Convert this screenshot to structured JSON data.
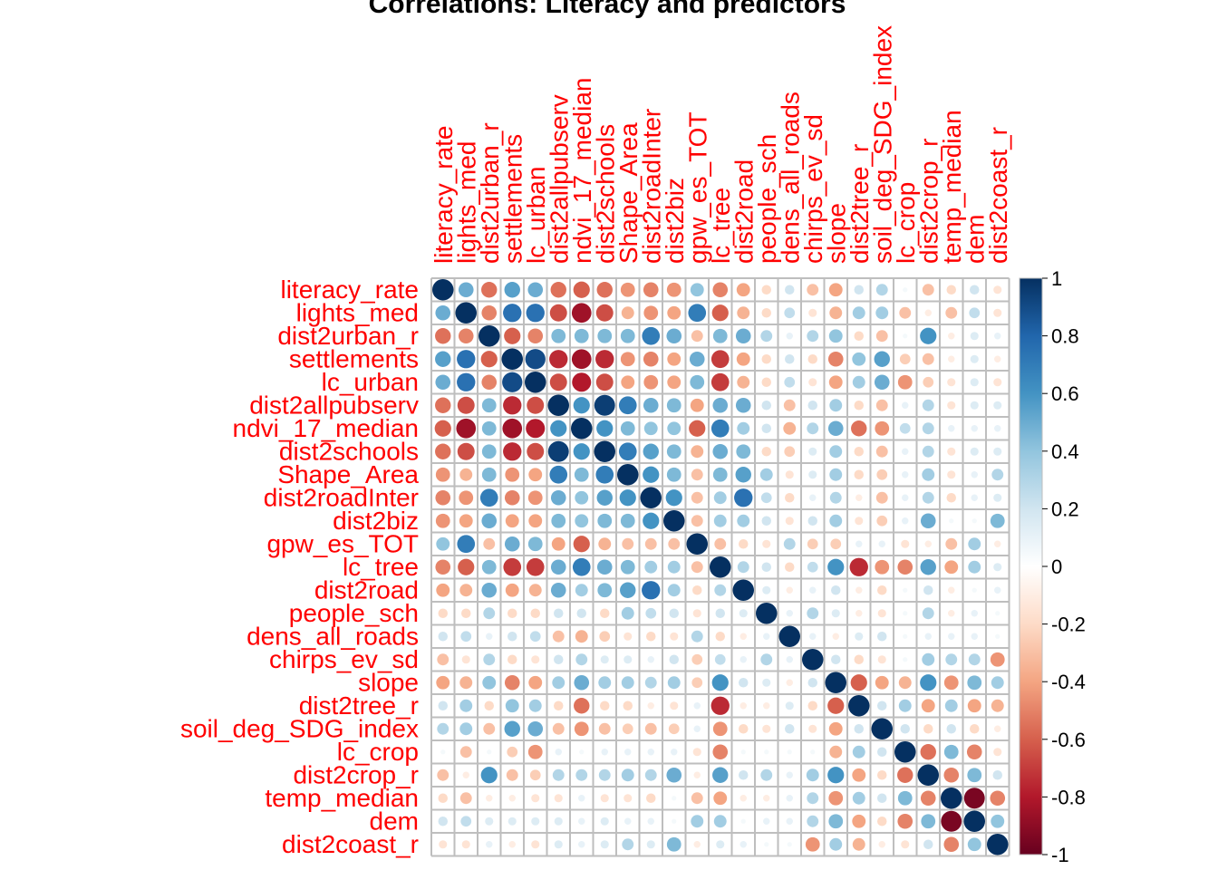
{
  "chart_data": {
    "type": "heatmap",
    "title": "Correlations: Literacy and predictors",
    "variables": [
      "literacy_rate",
      "lights_med",
      "dist2urban_r",
      "settlements",
      "lc_urban",
      "dist2allpubserv",
      "ndvi_17_median",
      "dist2schools",
      "Shape_Area",
      "dist2roadInter",
      "dist2biz",
      "gpw_es_TOT",
      "lc_tree",
      "dist2road",
      "people_sch",
      "dens_all_roads",
      "chirps_ev_sd",
      "slope",
      "dist2tree_r",
      "soil_deg_SDG_index",
      "lc_crop",
      "dist2crop_r",
      "temp_median",
      "dem",
      "dist2coast_r"
    ],
    "values": [
      [
        1,
        0.5,
        -0.55,
        0.55,
        0.5,
        -0.55,
        -0.6,
        -0.55,
        -0.45,
        -0.5,
        -0.45,
        0.4,
        -0.5,
        -0.4,
        -0.2,
        0.2,
        -0.3,
        -0.4,
        0.2,
        0.3,
        0.05,
        -0.3,
        -0.2,
        0.2,
        -0.15
      ],
      [
        0.5,
        1,
        -0.5,
        0.75,
        0.75,
        -0.65,
        -0.85,
        -0.65,
        -0.35,
        -0.45,
        -0.4,
        0.7,
        -0.6,
        -0.35,
        -0.2,
        0.25,
        -0.15,
        -0.35,
        0.35,
        0.35,
        -0.3,
        -0.1,
        -0.3,
        0.25,
        -0.15
      ],
      [
        -0.55,
        -0.5,
        1,
        -0.6,
        -0.5,
        0.45,
        0.45,
        0.45,
        0.45,
        0.7,
        0.5,
        -0.3,
        0.45,
        0.5,
        0.3,
        0.1,
        0.3,
        0.4,
        -0.2,
        -0.3,
        0.05,
        0.6,
        -0.1,
        0.15,
        0.1
      ],
      [
        0.55,
        0.75,
        -0.6,
        1,
        0.9,
        -0.75,
        -0.85,
        -0.75,
        -0.45,
        -0.5,
        -0.4,
        0.5,
        -0.7,
        -0.4,
        -0.2,
        0.2,
        -0.2,
        -0.5,
        0.4,
        0.55,
        -0.25,
        -0.3,
        -0.1,
        0.15,
        -0.1
      ],
      [
        0.5,
        0.75,
        -0.5,
        0.9,
        1,
        -0.65,
        -0.8,
        -0.65,
        -0.4,
        -0.45,
        -0.4,
        0.45,
        -0.7,
        -0.35,
        -0.2,
        0.25,
        -0.15,
        -0.4,
        0.35,
        0.5,
        -0.45,
        -0.25,
        -0.15,
        0.15,
        -0.15
      ],
      [
        -0.55,
        -0.65,
        0.45,
        -0.75,
        -0.65,
        1,
        0.6,
        0.95,
        0.7,
        0.5,
        0.45,
        -0.4,
        0.5,
        0.5,
        0.2,
        -0.3,
        0.2,
        0.35,
        -0.2,
        -0.3,
        0.1,
        0.3,
        -0.15,
        0.15,
        0.15
      ],
      [
        -0.6,
        -0.85,
        0.45,
        -0.85,
        -0.8,
        0.6,
        1,
        0.6,
        0.45,
        0.4,
        0.4,
        -0.6,
        0.7,
        0.35,
        0.2,
        -0.35,
        0.3,
        0.5,
        -0.55,
        -0.45,
        0.25,
        0.3,
        0.1,
        0.1,
        0.1
      ],
      [
        -0.55,
        -0.65,
        0.45,
        -0.75,
        -0.65,
        0.95,
        0.6,
        1,
        0.7,
        0.55,
        0.45,
        -0.35,
        0.5,
        0.45,
        -0.2,
        -0.25,
        0.15,
        0.35,
        -0.2,
        -0.3,
        0.1,
        0.3,
        -0.15,
        0.15,
        0.15
      ],
      [
        -0.45,
        -0.35,
        0.45,
        -0.45,
        -0.4,
        0.7,
        0.45,
        0.7,
        1,
        0.6,
        0.45,
        -0.3,
        0.45,
        0.55,
        0.35,
        -0.15,
        0.15,
        0.35,
        -0.2,
        -0.25,
        0.1,
        0.35,
        -0.15,
        0.1,
        0.3
      ],
      [
        -0.5,
        -0.45,
        0.7,
        -0.5,
        -0.45,
        0.5,
        0.4,
        0.55,
        0.6,
        1,
        0.6,
        -0.3,
        0.35,
        0.75,
        0.25,
        -0.2,
        0.1,
        0.3,
        -0.1,
        -0.3,
        0.1,
        0.3,
        -0.2,
        0.1,
        0.15
      ],
      [
        -0.45,
        -0.4,
        0.5,
        -0.4,
        -0.4,
        0.45,
        0.4,
        0.45,
        0.45,
        0.6,
        1,
        -0.3,
        0.35,
        0.35,
        0.2,
        -0.15,
        0.2,
        0.35,
        -0.15,
        -0.25,
        0.1,
        0.5,
        0.05,
        0.05,
        0.45
      ],
      [
        0.4,
        0.7,
        -0.3,
        0.5,
        0.45,
        -0.4,
        -0.6,
        -0.35,
        -0.3,
        -0.3,
        -0.3,
        1,
        -0.3,
        -0.2,
        -0.15,
        0.3,
        -0.25,
        -0.25,
        0.1,
        0.1,
        -0.15,
        -0.1,
        -0.3,
        0.35,
        -0.1
      ],
      [
        -0.5,
        -0.6,
        0.45,
        -0.7,
        -0.7,
        0.5,
        0.7,
        0.5,
        0.45,
        0.35,
        0.35,
        -0.3,
        1,
        0.3,
        0.2,
        -0.2,
        0.25,
        0.6,
        -0.75,
        -0.45,
        -0.5,
        0.55,
        -0.4,
        0.35,
        0.15
      ],
      [
        -0.4,
        -0.35,
        0.5,
        -0.4,
        -0.35,
        0.5,
        0.35,
        0.45,
        0.55,
        0.75,
        0.35,
        -0.2,
        0.3,
        1,
        0.15,
        -0.1,
        0.1,
        0.2,
        -0.1,
        -0.2,
        0.05,
        0.2,
        -0.1,
        0.05,
        0.1
      ],
      [
        -0.2,
        -0.2,
        0.3,
        -0.2,
        -0.2,
        0.2,
        0.2,
        -0.2,
        0.35,
        0.25,
        0.2,
        -0.15,
        0.2,
        0.15,
        1,
        0.1,
        0.3,
        0.15,
        -0.1,
        -0.15,
        0.05,
        0.3,
        -0.1,
        0.1,
        0.05
      ],
      [
        0.2,
        0.25,
        0.1,
        0.2,
        0.25,
        -0.3,
        -0.35,
        -0.25,
        -0.15,
        -0.2,
        -0.15,
        0.3,
        -0.2,
        -0.1,
        0.1,
        1,
        0.1,
        -0.1,
        0.15,
        0.2,
        0.05,
        0.1,
        0.1,
        0.1,
        0.05
      ],
      [
        -0.3,
        -0.15,
        0.3,
        -0.2,
        -0.15,
        0.2,
        0.3,
        0.15,
        0.15,
        0.1,
        0.2,
        -0.25,
        0.25,
        0.1,
        0.3,
        0.1,
        1,
        0.2,
        -0.2,
        -0.15,
        0.05,
        0.35,
        0.3,
        0.3,
        -0.45
      ],
      [
        -0.4,
        -0.35,
        0.4,
        -0.5,
        -0.4,
        0.35,
        0.5,
        0.35,
        0.35,
        0.3,
        0.35,
        -0.25,
        0.6,
        0.2,
        0.15,
        -0.1,
        0.2,
        1,
        -0.6,
        -0.4,
        -0.35,
        0.6,
        -0.45,
        0.45,
        0.35
      ],
      [
        0.2,
        0.35,
        -0.2,
        0.4,
        0.35,
        -0.2,
        -0.55,
        -0.2,
        -0.2,
        -0.1,
        -0.15,
        0.1,
        -0.75,
        -0.1,
        -0.1,
        0.15,
        -0.2,
        -0.6,
        1,
        0.2,
        0.35,
        -0.4,
        0.35,
        -0.4,
        -0.35
      ],
      [
        0.3,
        0.35,
        -0.3,
        0.55,
        0.5,
        -0.3,
        -0.45,
        -0.3,
        -0.25,
        -0.3,
        -0.25,
        0.1,
        -0.45,
        -0.2,
        -0.15,
        0.2,
        -0.15,
        -0.4,
        0.2,
        1,
        0.2,
        -0.2,
        0.2,
        -0.2,
        -0.1
      ],
      [
        0.05,
        -0.3,
        0.05,
        -0.25,
        -0.45,
        0.1,
        0.05,
        0.1,
        0.1,
        0.1,
        0.1,
        -0.15,
        -0.5,
        0.05,
        0.05,
        0.05,
        0.05,
        -0.35,
        0.35,
        0.2,
        1,
        -0.55,
        0.45,
        -0.5,
        -0.15
      ],
      [
        -0.3,
        -0.1,
        0.6,
        -0.3,
        -0.25,
        0.3,
        0.3,
        0.3,
        0.35,
        0.3,
        0.5,
        -0.1,
        0.55,
        0.2,
        0.3,
        0.1,
        0.35,
        0.6,
        -0.4,
        -0.2,
        -0.55,
        1,
        -0.5,
        0.45,
        0.2
      ],
      [
        -0.2,
        -0.3,
        -0.1,
        -0.1,
        -0.15,
        -0.15,
        0.1,
        -0.15,
        -0.15,
        -0.2,
        0.05,
        -0.3,
        -0.4,
        -0.1,
        -0.1,
        0.1,
        0.3,
        -0.45,
        0.35,
        0.2,
        0.45,
        -0.5,
        1,
        -0.95,
        -0.5
      ],
      [
        0.2,
        0.25,
        0.15,
        0.15,
        0.15,
        0.15,
        0.1,
        0.15,
        0.1,
        0.1,
        0.05,
        0.35,
        0.35,
        0.05,
        0.1,
        0.1,
        0.3,
        0.45,
        -0.4,
        -0.2,
        -0.5,
        0.45,
        -0.95,
        1,
        0.4
      ],
      [
        -0.15,
        -0.15,
        0.1,
        -0.1,
        -0.15,
        0.15,
        0.1,
        0.15,
        0.3,
        0.15,
        0.45,
        -0.1,
        0.15,
        0.1,
        0.05,
        0.05,
        -0.45,
        0.35,
        -0.35,
        -0.1,
        -0.15,
        0.2,
        -0.5,
        0.4,
        1
      ]
    ],
    "colorbar": {
      "ticks": [
        "1",
        "0.8",
        "0.6",
        "0.4",
        "0.2",
        "0",
        "-0.2",
        "-0.4",
        "-0.6",
        "-0.8",
        "-1"
      ],
      "range": [
        -1,
        1
      ]
    },
    "colors": {
      "stops": [
        "#67001F",
        "#B2182B",
        "#D6604D",
        "#F4A582",
        "#FDDBC7",
        "#FFFFFF",
        "#D1E5F0",
        "#92C5DE",
        "#4393C3",
        "#2166AC",
        "#053061"
      ],
      "label_color": "#FF0000",
      "grid_color": "#BEBEBE"
    },
    "method": "circle"
  }
}
